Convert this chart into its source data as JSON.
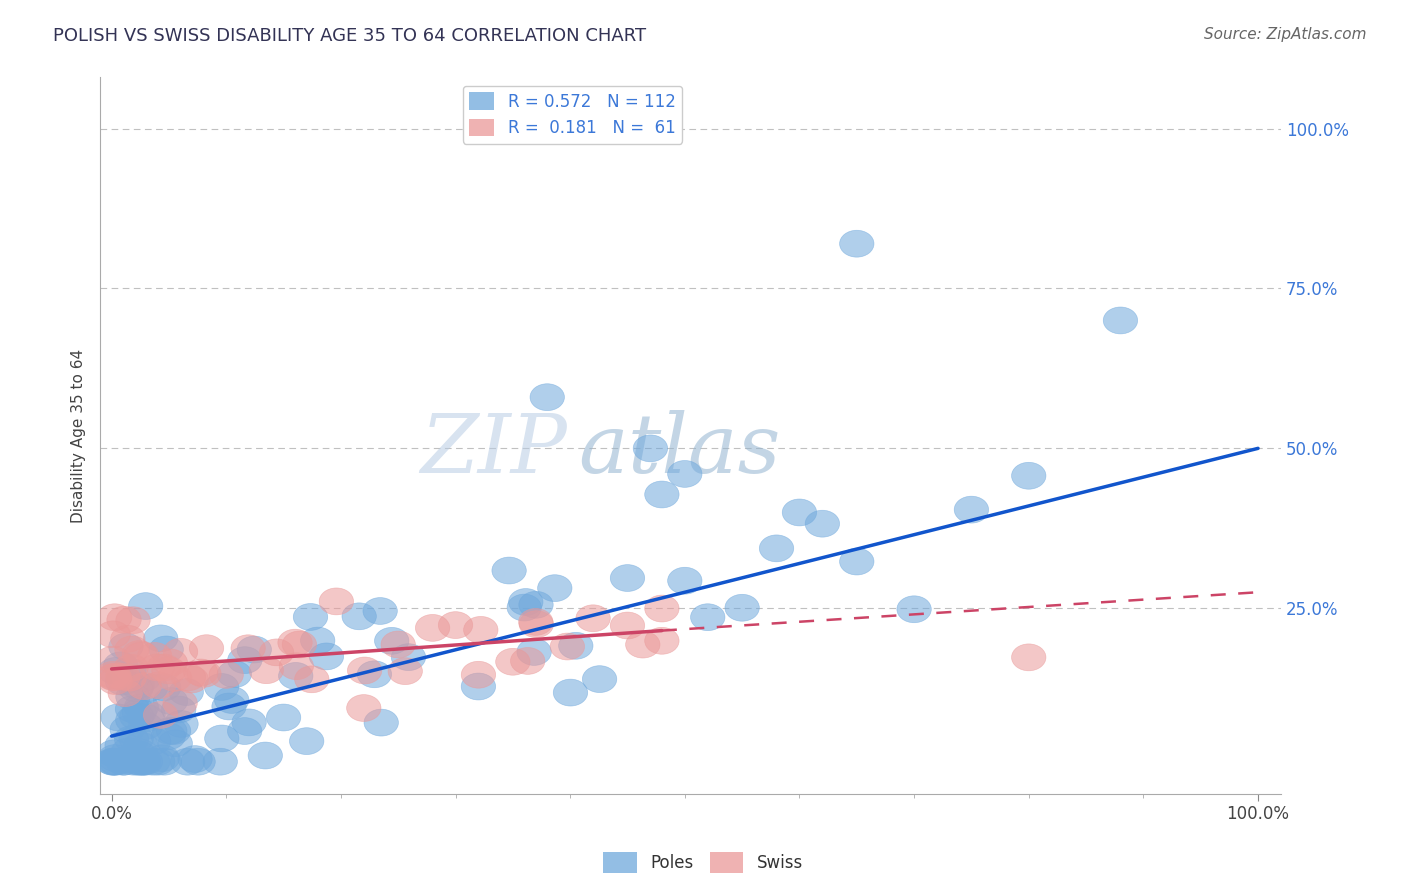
{
  "title": "POLISH VS SWISS DISABILITY AGE 35 TO 64 CORRELATION CHART",
  "source": "Source: ZipAtlas.com",
  "ylabel": "Disability Age 35 to 64",
  "poles_R": 0.572,
  "poles_N": 112,
  "swiss_R": 0.181,
  "swiss_N": 61,
  "poles_color": "#6fa8dc",
  "swiss_color": "#ea9999",
  "poles_line_color": "#1155cc",
  "swiss_line_color": "#cc4466",
  "grid_color": "#c0c0c0"
}
